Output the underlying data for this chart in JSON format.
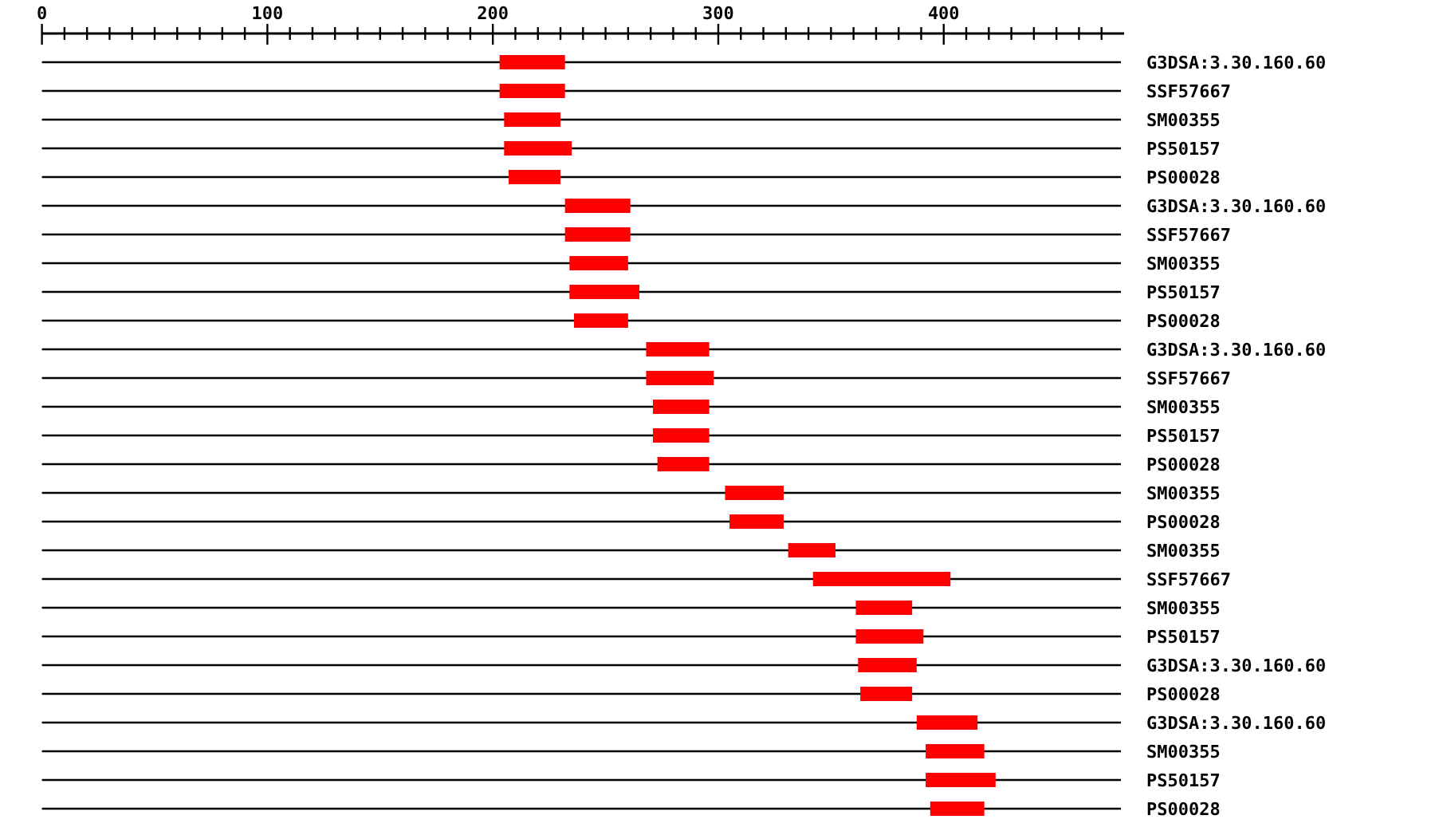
{
  "chart_data": {
    "type": "bar",
    "orientation": "horizontal",
    "categories": [
      "G3DSA:3.30.160.60",
      "SSF57667",
      "SM00355",
      "PS50157",
      "PS00028",
      "G3DSA:3.30.160.60",
      "SSF57667",
      "SM00355",
      "PS50157",
      "PS00028",
      "G3DSA:3.30.160.60",
      "SSF57667",
      "SM00355",
      "PS50157",
      "PS00028",
      "SM00355",
      "PS00028",
      "SM00355",
      "SSF57667",
      "SM00355",
      "PS50157",
      "G3DSA:3.30.160.60",
      "PS00028",
      "G3DSA:3.30.160.60",
      "SM00355",
      "PS50157",
      "PS00028"
    ],
    "base": [
      203,
      203,
      205,
      205,
      207,
      232,
      232,
      234,
      234,
      236,
      268,
      268,
      271,
      271,
      273,
      303,
      305,
      331,
      342,
      361,
      361,
      362,
      363,
      388,
      392,
      392,
      394
    ],
    "values": [
      29,
      29,
      25,
      30,
      23,
      29,
      29,
      26,
      31,
      24,
      28,
      30,
      25,
      25,
      23,
      26,
      24,
      21,
      61,
      25,
      30,
      26,
      23,
      27,
      26,
      31,
      24
    ],
    "color": "#ff0000",
    "grid": "y",
    "xlim": [
      0,
      480
    ],
    "xticks": [
      0,
      {
        "value": 10,
        "label": null
      },
      {
        "value": 20,
        "label": null
      },
      {
        "value": 30,
        "label": null
      },
      {
        "value": 40,
        "label": null
      },
      {
        "value": 50,
        "label": null
      },
      {
        "value": 60,
        "label": null
      },
      {
        "value": 70,
        "label": null
      },
      {
        "value": 80,
        "label": null
      },
      {
        "value": 90,
        "label": null
      },
      100,
      {
        "value": 110,
        "label": null
      },
      {
        "value": 120,
        "label": null
      },
      {
        "value": 130,
        "label": null
      },
      {
        "value": 140,
        "label": null
      },
      {
        "value": 150,
        "label": null
      },
      {
        "value": 160,
        "label": null
      },
      {
        "value": 170,
        "label": null
      },
      {
        "value": 180,
        "label": null
      },
      {
        "value": 190,
        "label": null
      },
      200,
      {
        "value": 210,
        "label": null
      },
      {
        "value": 220,
        "label": null
      },
      {
        "value": 230,
        "label": null
      },
      {
        "value": 240,
        "label": null
      },
      {
        "value": 250,
        "label": null
      },
      {
        "value": 260,
        "label": null
      },
      {
        "value": 270,
        "label": null
      },
      {
        "value": 280,
        "label": null
      },
      {
        "value": 290,
        "label": null
      },
      300,
      {
        "value": 310,
        "label": null
      },
      {
        "value": 320,
        "label": null
      },
      {
        "value": 330,
        "label": null
      },
      {
        "value": 340,
        "label": null
      },
      {
        "value": 350,
        "label": null
      },
      {
        "value": 360,
        "label": null
      },
      {
        "value": 370,
        "label": null
      },
      {
        "value": 380,
        "label": null
      },
      {
        "value": 390,
        "label": null
      },
      400,
      {
        "value": 410,
        "label": null
      },
      {
        "value": 420,
        "label": null
      },
      {
        "value": 430,
        "label": null
      },
      {
        "value": 440,
        "label": null
      },
      {
        "value": 450,
        "label": null
      },
      {
        "value": 460,
        "label": null
      },
      {
        "value": 470,
        "label": null
      }
    ]
  }
}
